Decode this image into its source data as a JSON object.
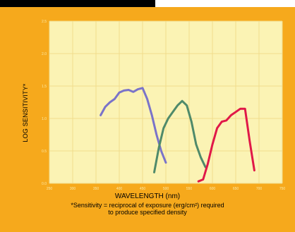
{
  "chart_data": {
    "type": "line",
    "xlabel": "WAVELENGTH (nm)",
    "ylabel": "LOG SENSITIVITY*",
    "xlim": [
      250,
      750
    ],
    "ylim": [
      0.0,
      2.5
    ],
    "x_ticks": [
      "250",
      "300",
      "350",
      "400",
      "450",
      "500",
      "550",
      "600",
      "650",
      "700",
      "750"
    ],
    "y_ticks": [
      "0.0",
      "0.5",
      "1.0",
      "1.5",
      "2.0",
      "2.5"
    ],
    "grid": true,
    "series": [
      {
        "color": "#7a73c9",
        "x": [
          360,
          370,
          380,
          390,
          400,
          410,
          420,
          430,
          440,
          450,
          460,
          470,
          480,
          490,
          500
        ],
        "y": [
          1.05,
          1.18,
          1.25,
          1.3,
          1.4,
          1.43,
          1.44,
          1.41,
          1.45,
          1.47,
          1.3,
          1.05,
          0.75,
          0.5,
          0.32
        ]
      },
      {
        "color": "#4f8a6a",
        "x": [
          475,
          485,
          495,
          505,
          515,
          525,
          535,
          545,
          555,
          565,
          575,
          585
        ],
        "y": [
          0.17,
          0.55,
          0.85,
          1.0,
          1.1,
          1.2,
          1.27,
          1.2,
          0.95,
          0.6,
          0.4,
          0.25
        ]
      },
      {
        "color": "#e01848",
        "x": [
          570,
          580,
          590,
          600,
          610,
          620,
          630,
          640,
          650,
          660,
          670,
          680,
          690
        ],
        "y": [
          0.03,
          0.06,
          0.3,
          0.6,
          0.85,
          0.95,
          0.97,
          1.05,
          1.1,
          1.15,
          1.15,
          0.65,
          0.2
        ]
      }
    ]
  },
  "footnote": {
    "line1": "*Sensitivity = reciprocal of exposure (erg/cm²) required",
    "line2": "to produce specified density"
  }
}
